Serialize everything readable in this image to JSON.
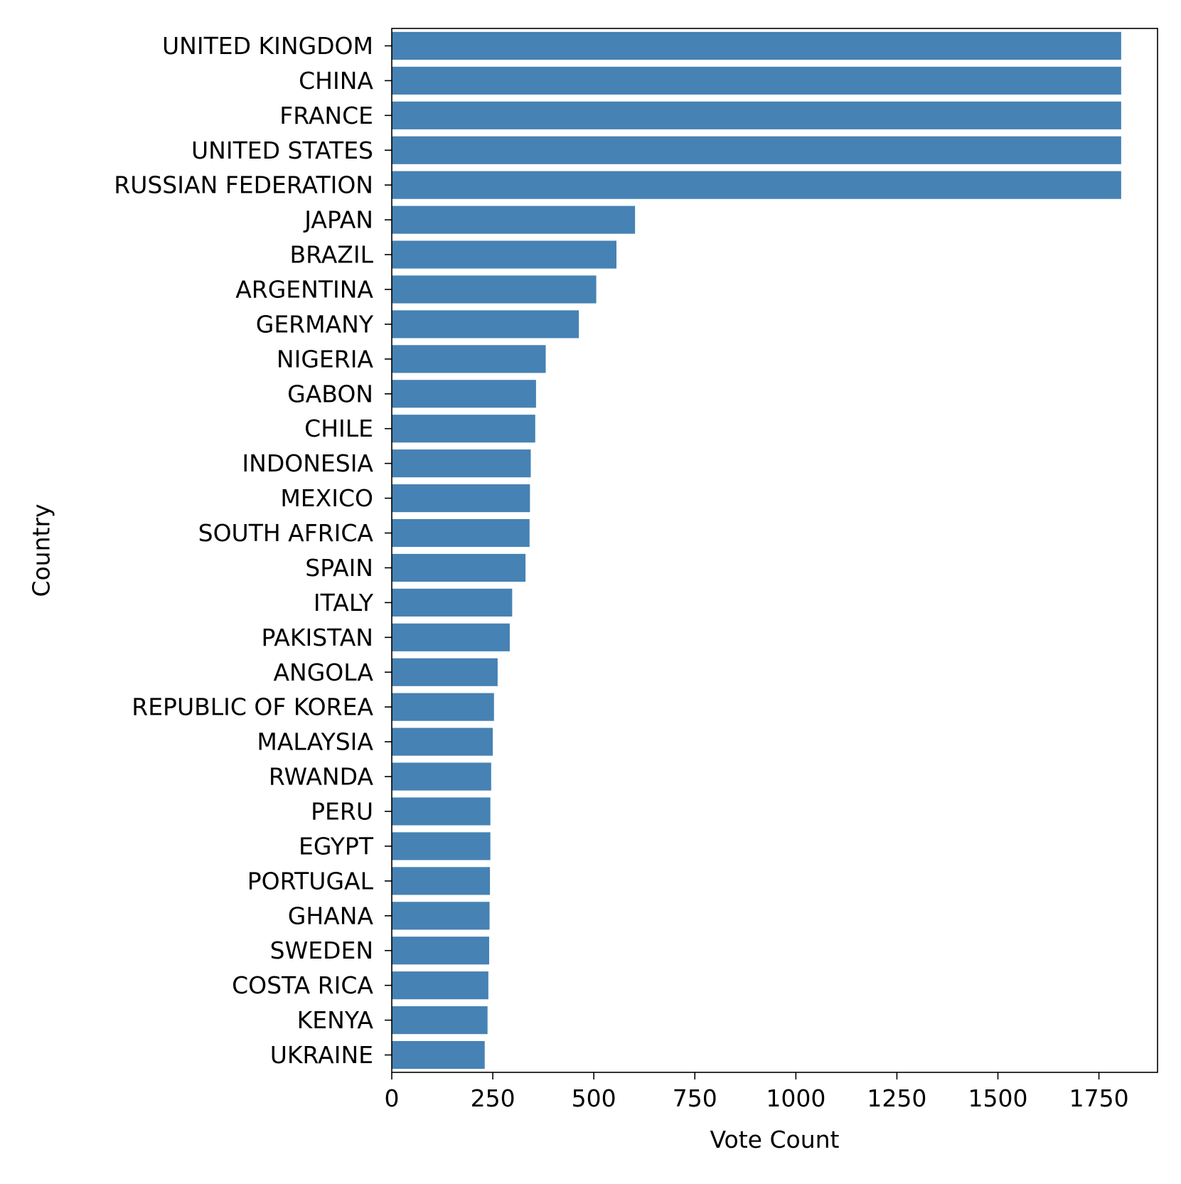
{
  "chart_data": {
    "type": "bar",
    "orientation": "horizontal",
    "categories": [
      "UNITED KINGDOM",
      "CHINA",
      "FRANCE",
      "UNITED STATES",
      "RUSSIAN FEDERATION",
      "JAPAN",
      "BRAZIL",
      "ARGENTINA",
      "GERMANY",
      "NIGERIA",
      "GABON",
      "CHILE",
      "INDONESIA",
      "MEXICO",
      "SOUTH AFRICA",
      "SPAIN",
      "ITALY",
      "PAKISTAN",
      "ANGOLA",
      "REPUBLIC OF KOREA",
      "MALAYSIA",
      "RWANDA",
      "PERU",
      "EGYPT",
      "PORTUGAL",
      "GHANA",
      "SWEDEN",
      "COSTA RICA",
      "KENYA",
      "UKRAINE"
    ],
    "values": [
      1805,
      1805,
      1805,
      1805,
      1805,
      602,
      556,
      506,
      463,
      381,
      357,
      355,
      344,
      342,
      341,
      331,
      298,
      292,
      262,
      253,
      250,
      246,
      244,
      244,
      243,
      242,
      241,
      239,
      237,
      230
    ],
    "title": "",
    "xlabel": "Vote Count",
    "ylabel": "Country",
    "xlim": [
      0,
      1895
    ],
    "xticks": [
      0,
      250,
      500,
      750,
      1000,
      1250,
      1500,
      1750
    ],
    "grid": false,
    "legend": "none",
    "bar_color": "#4682b4"
  }
}
